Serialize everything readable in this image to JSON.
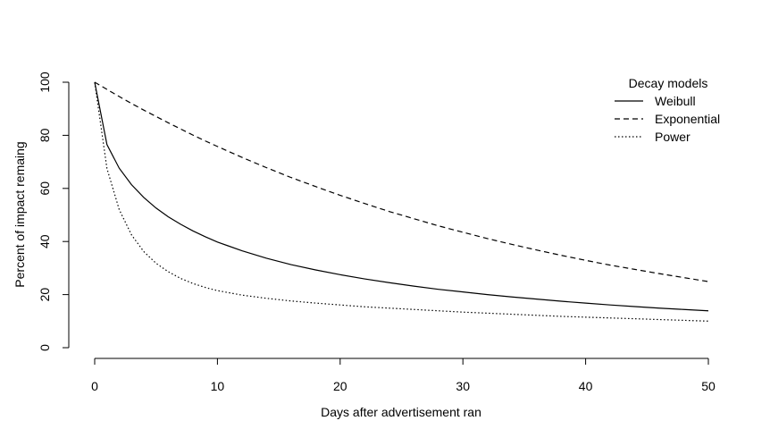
{
  "chart_data": {
    "type": "line",
    "title": "",
    "xlabel": "Days after advertisement ran",
    "ylabel": "Percent of impact remaing",
    "xlim": [
      0,
      50
    ],
    "ylim": [
      0,
      100
    ],
    "xticks": [
      0,
      10,
      20,
      30,
      40,
      50
    ],
    "yticks": [
      0,
      20,
      40,
      60,
      80,
      100
    ],
    "grid": false,
    "legend": {
      "title": "Decay models",
      "position": "top-right",
      "entries": [
        {
          "label": "Weibull",
          "style": "solid"
        },
        {
          "label": "Exponential",
          "style": "dashed"
        },
        {
          "label": "Power",
          "style": "dotted"
        }
      ]
    },
    "x": [
      0,
      1,
      2,
      3,
      4,
      5,
      6,
      7,
      8,
      9,
      10,
      12,
      14,
      16,
      18,
      20,
      22,
      24,
      26,
      28,
      30,
      32,
      34,
      36,
      38,
      40,
      42,
      44,
      46,
      48,
      50
    ],
    "series": [
      {
        "name": "Weibull",
        "style": "solid",
        "values": [
          100,
          76.5,
          67.6,
          61.4,
          56.6,
          52.6,
          49.3,
          46.5,
          44.0,
          41.8,
          39.8,
          36.5,
          33.7,
          31.3,
          29.3,
          27.5,
          25.9,
          24.5,
          23.2,
          22.0,
          21.0,
          20.0,
          19.1,
          18.3,
          17.5,
          16.8,
          16.1,
          15.5,
          14.9,
          14.4,
          13.9
        ]
      },
      {
        "name": "Exponential",
        "style": "dashed",
        "values": [
          100,
          97.3,
          94.6,
          92.0,
          89.5,
          87.1,
          84.7,
          82.4,
          80.1,
          77.9,
          75.8,
          71.7,
          67.8,
          64.1,
          60.7,
          57.4,
          54.3,
          51.3,
          48.6,
          45.9,
          43.5,
          41.1,
          38.9,
          36.8,
          34.8,
          32.9,
          31.1,
          29.5,
          27.9,
          26.4,
          24.9
        ]
      },
      {
        "name": "Power",
        "style": "dotted",
        "values": [
          100,
          67.5,
          52.0,
          42.5,
          36.2,
          31.8,
          28.6,
          26.1,
          24.2,
          22.7,
          21.5,
          19.8,
          18.6,
          17.6,
          16.8,
          16.1,
          15.4,
          14.9,
          14.4,
          13.9,
          13.4,
          13.0,
          12.6,
          12.2,
          11.8,
          11.5,
          11.2,
          10.9,
          10.6,
          10.3,
          10.0
        ]
      }
    ]
  }
}
